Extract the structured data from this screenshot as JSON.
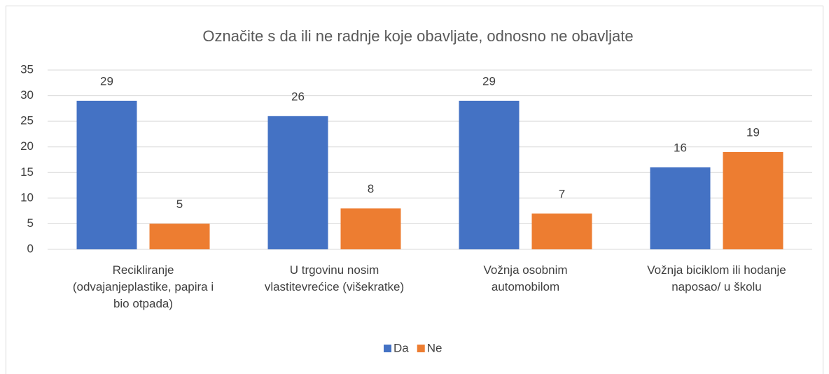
{
  "chart_data": {
    "type": "bar",
    "title": "Označite s da ili ne radnje koje obavljate, odnosno ne obavljate",
    "categories": [
      "Recikliranje\n(odvajanjeplastike, papira i\nbio otpada)",
      "U trgovinu nosim\nvlastitevrećice (višekratke)",
      "Vožnja osobnim\nautomobilom",
      "Vožnja biciklom ili hodanje\nnaposao/ u školu"
    ],
    "series": [
      {
        "name": "Da",
        "color": "#4472c4",
        "values": [
          29,
          26,
          29,
          16
        ]
      },
      {
        "name": "Ne",
        "color": "#ed7d31",
        "values": [
          5,
          8,
          7,
          19
        ]
      }
    ],
    "ylim": [
      0,
      35
    ],
    "yticks": [
      0,
      5,
      10,
      15,
      20,
      25,
      30,
      35
    ],
    "grid": true,
    "legend": "bottom"
  }
}
